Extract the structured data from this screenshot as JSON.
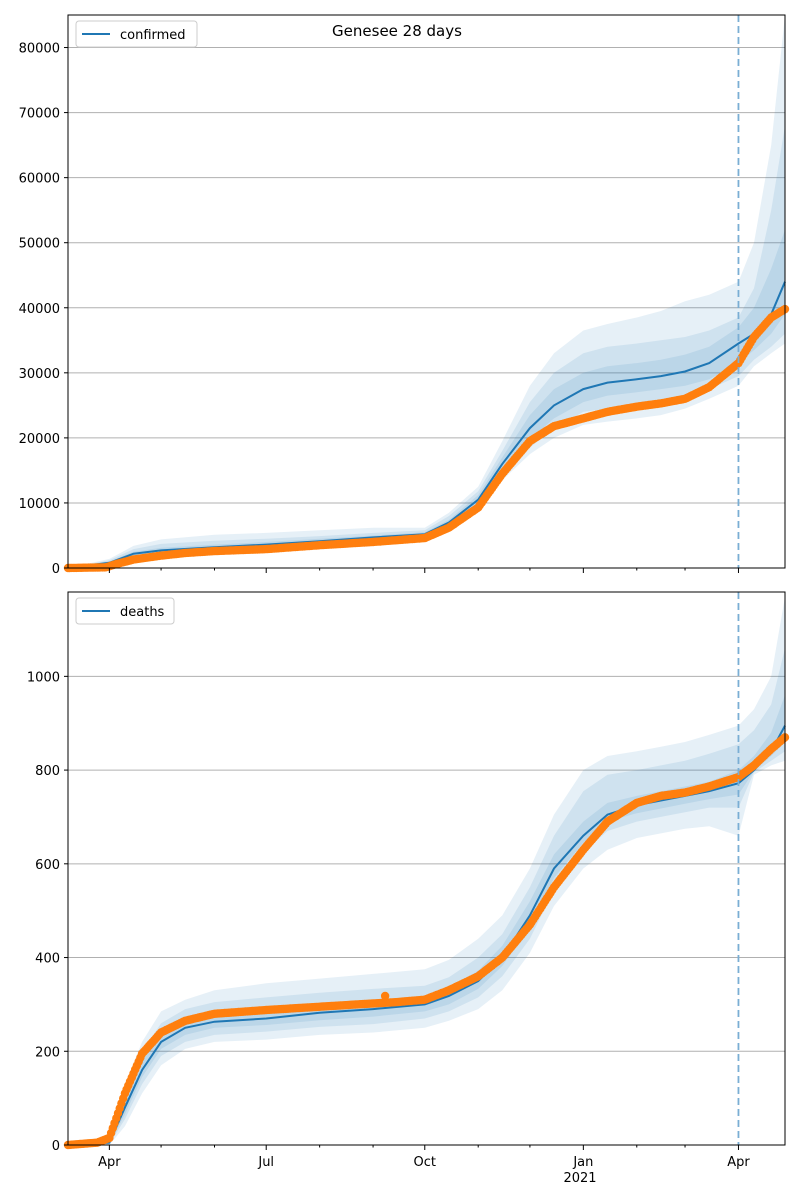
{
  "figure": {
    "title": "Genesee 28 days"
  },
  "colors": {
    "model_line": "#1f77b4",
    "band": "#1f77b4",
    "observed": "#ff7f0e",
    "forecast_marker": "#7aaed4",
    "grid": "#b0b0b0"
  },
  "chart_data": [
    {
      "type": "line",
      "name": "confirmed-panel",
      "legend": [
        "confirmed"
      ],
      "legend_position": "top-left",
      "grid_y": true,
      "xlim": [
        "2020-03-08",
        "2021-04-28"
      ],
      "ylim": [
        0,
        85000
      ],
      "y_ticks": [
        0,
        10000,
        20000,
        30000,
        40000,
        50000,
        60000,
        70000,
        80000
      ],
      "x_tick_labels": [],
      "forecast_start": "2021-04-01",
      "model": {
        "x": [
          "2020-03-08",
          "2020-04-01",
          "2020-04-15",
          "2020-05-01",
          "2020-06-01",
          "2020-07-01",
          "2020-08-01",
          "2020-09-01",
          "2020-10-01",
          "2020-10-15",
          "2020-11-01",
          "2020-11-15",
          "2020-12-01",
          "2020-12-15",
          "2021-01-01",
          "2021-01-15",
          "2021-02-01",
          "2021-02-15",
          "2021-03-01",
          "2021-03-15",
          "2021-04-01",
          "2021-04-10",
          "2021-04-20",
          "2021-04-28"
        ],
        "y": [
          0,
          800,
          2200,
          2700,
          3200,
          3600,
          4100,
          4700,
          5200,
          7000,
          10500,
          16000,
          21500,
          25000,
          27500,
          28500,
          29000,
          29500,
          30200,
          31500,
          34500,
          36000,
          39000,
          44000
        ]
      },
      "bands": [
        {
          "level": "outer",
          "lower": [
            0,
            400,
            1400,
            1900,
            2400,
            2700,
            3000,
            3500,
            4500,
            6200,
            9000,
            13500,
            17500,
            20000,
            22000,
            22500,
            23000,
            23500,
            24500,
            26000,
            28000,
            31000,
            33000,
            34500
          ],
          "upper": [
            0,
            1400,
            3400,
            4400,
            5100,
            5400,
            5800,
            6200,
            6200,
            8500,
            12500,
            19500,
            28000,
            33000,
            36500,
            37500,
            38500,
            39500,
            41000,
            42000,
            44000,
            50000,
            65000,
            85000
          ]
        },
        {
          "level": "middle",
          "lower": [
            0,
            500,
            1700,
            2200,
            2700,
            3000,
            3400,
            3900,
            4700,
            6500,
            9500,
            14500,
            18500,
            21500,
            24000,
            24500,
            25000,
            25500,
            26000,
            27500,
            29500,
            32000,
            34000,
            36000
          ],
          "upper": [
            0,
            1200,
            2900,
            3700,
            4200,
            4500,
            4900,
            5400,
            5800,
            8000,
            11800,
            18000,
            25500,
            30000,
            33000,
            34000,
            34500,
            35000,
            35500,
            36500,
            38500,
            43000,
            55000,
            68000
          ]
        },
        {
          "level": "inner",
          "lower": [
            0,
            600,
            1900,
            2400,
            2900,
            3300,
            3700,
            4200,
            4900,
            6700,
            10000,
            15000,
            19800,
            23000,
            25500,
            26500,
            27000,
            27500,
            28000,
            29000,
            31500,
            33500,
            36000,
            39000
          ],
          "upper": [
            0,
            1000,
            2500,
            3100,
            3600,
            4000,
            4500,
            5000,
            5500,
            7400,
            11200,
            17000,
            23500,
            27500,
            30000,
            31000,
            31500,
            32000,
            32800,
            34000,
            37000,
            40000,
            46000,
            52000
          ]
        }
      ],
      "observed": {
        "x": [
          "2020-03-08",
          "2020-03-30",
          "2020-04-05",
          "2020-04-15",
          "2020-05-01",
          "2020-05-15",
          "2020-06-01",
          "2020-07-01",
          "2020-08-01",
          "2020-09-01",
          "2020-10-01",
          "2020-10-15",
          "2020-11-01",
          "2020-11-15",
          "2020-12-01",
          "2020-12-15",
          "2021-01-01",
          "2021-01-15",
          "2021-02-01",
          "2021-02-15",
          "2021-03-01",
          "2021-03-15",
          "2021-04-01",
          "2021-04-10",
          "2021-04-20",
          "2021-04-28"
        ],
        "y": [
          0,
          100,
          600,
          1300,
          1900,
          2300,
          2600,
          2900,
          3500,
          4000,
          4600,
          6200,
          9300,
          14500,
          19500,
          21800,
          23000,
          24000,
          24800,
          25300,
          26000,
          27800,
          31500,
          35500,
          38500,
          39800
        ]
      }
    },
    {
      "type": "line",
      "name": "deaths-panel",
      "legend": [
        "deaths"
      ],
      "legend_position": "top-left",
      "grid_y": true,
      "xlim": [
        "2020-03-08",
        "2021-04-28"
      ],
      "ylim": [
        0,
        1180
      ],
      "y_ticks": [
        0,
        200,
        400,
        600,
        800,
        1000
      ],
      "x_tick_labels": [
        "Apr",
        "Jul",
        "Oct",
        "Jan",
        "Apr"
      ],
      "x_tick_dates": [
        "2020-04-01",
        "2020-07-01",
        "2020-10-01",
        "2021-01-01",
        "2021-04-01"
      ],
      "x_secondary_label": "2021",
      "forecast_start": "2021-04-01",
      "model": {
        "x": [
          "2020-03-08",
          "2020-04-01",
          "2020-04-10",
          "2020-04-20",
          "2020-05-01",
          "2020-05-15",
          "2020-06-01",
          "2020-07-01",
          "2020-08-01",
          "2020-09-01",
          "2020-10-01",
          "2020-10-15",
          "2020-11-01",
          "2020-11-15",
          "2020-12-01",
          "2020-12-15",
          "2021-01-01",
          "2021-01-15",
          "2021-02-01",
          "2021-02-15",
          "2021-03-01",
          "2021-03-15",
          "2021-04-01",
          "2021-04-10",
          "2021-04-20",
          "2021-04-28"
        ],
        "y": [
          0,
          5,
          80,
          160,
          220,
          250,
          263,
          270,
          282,
          290,
          300,
          318,
          350,
          400,
          490,
          590,
          660,
          705,
          725,
          735,
          745,
          755,
          772,
          800,
          840,
          895
        ]
      },
      "bands": [
        {
          "level": "outer",
          "lower": [
            0,
            0,
            40,
            110,
            170,
            205,
            220,
            225,
            235,
            240,
            250,
            265,
            290,
            330,
            410,
            510,
            590,
            630,
            655,
            665,
            675,
            680,
            660,
            790,
            810,
            820
          ],
          "upper": [
            0,
            15,
            130,
            220,
            285,
            310,
            330,
            345,
            355,
            365,
            375,
            395,
            440,
            490,
            590,
            705,
            800,
            830,
            840,
            850,
            860,
            875,
            895,
            930,
            1000,
            1170
          ]
        },
        {
          "level": "middle",
          "lower": [
            0,
            2,
            55,
            130,
            190,
            220,
            235,
            242,
            252,
            258,
            270,
            285,
            315,
            360,
            440,
            545,
            625,
            670,
            690,
            700,
            710,
            720,
            720,
            795,
            820,
            840
          ],
          "upper": [
            0,
            10,
            110,
            200,
            260,
            290,
            305,
            315,
            325,
            333,
            340,
            358,
            400,
            450,
            550,
            660,
            755,
            790,
            800,
            810,
            820,
            835,
            855,
            885,
            940,
            1060
          ]
        },
        {
          "level": "inner",
          "lower": [
            0,
            3,
            65,
            145,
            205,
            235,
            250,
            256,
            266,
            274,
            285,
            300,
            333,
            382,
            465,
            570,
            645,
            690,
            708,
            718,
            728,
            738,
            748,
            798,
            830,
            860
          ],
          "upper": [
            0,
            8,
            95,
            180,
            240,
            270,
            282,
            288,
            298,
            306,
            318,
            336,
            372,
            425,
            520,
            620,
            690,
            730,
            745,
            755,
            765,
            775,
            800,
            830,
            880,
            960
          ]
        }
      ],
      "observed": {
        "x": [
          "2020-03-08",
          "2020-03-25",
          "2020-04-01",
          "2020-04-10",
          "2020-04-20",
          "2020-05-01",
          "2020-05-15",
          "2020-06-01",
          "2020-07-01",
          "2020-08-01",
          "2020-09-01",
          "2020-09-15",
          "2020-10-01",
          "2020-10-15",
          "2020-11-01",
          "2020-11-15",
          "2020-12-01",
          "2020-12-15",
          "2021-01-01",
          "2021-01-15",
          "2021-02-01",
          "2021-02-15",
          "2021-03-01",
          "2021-03-15",
          "2021-04-01",
          "2021-04-10",
          "2021-04-20",
          "2021-04-28"
        ],
        "y": [
          0,
          5,
          15,
          110,
          195,
          240,
          265,
          280,
          288,
          295,
          302,
          305,
          310,
          330,
          360,
          400,
          470,
          550,
          630,
          690,
          730,
          745,
          752,
          765,
          785,
          810,
          845,
          870
        ],
        "outliers": [
          {
            "x": "2020-09-08",
            "y": 318
          }
        ]
      }
    }
  ]
}
